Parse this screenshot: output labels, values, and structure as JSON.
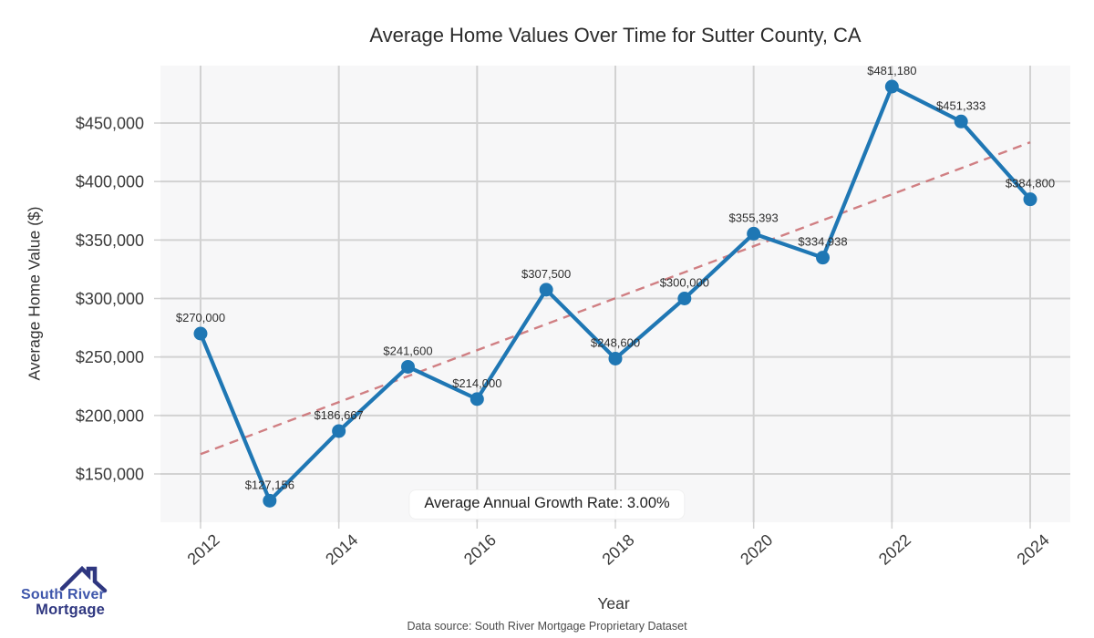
{
  "page": {
    "background": "#ffffff",
    "plot_background": "#f7f7f8",
    "grid_color": "#d2d2d2"
  },
  "chart_data": {
    "type": "line",
    "title": "Average Home Values Over Time for Sutter County, CA",
    "xlabel": "Year",
    "ylabel": "Average Home Value ($)",
    "x": [
      2012,
      2013,
      2014,
      2015,
      2016,
      2017,
      2018,
      2019,
      2020,
      2021,
      2022,
      2023,
      2024
    ],
    "values": [
      270000,
      127156,
      186667,
      241600,
      214000,
      307500,
      248600,
      300000,
      355393,
      334938,
      481180,
      451333,
      384800
    ],
    "point_labels": [
      "$270,000",
      "$127,156",
      "$186,667",
      "$241,600",
      "$214,000",
      "$307,500",
      "$248,600",
      "$300,000",
      "$355,393",
      "$334,938",
      "$481,180",
      "$451,333",
      "$384,800"
    ],
    "x_ticks": [
      2012,
      2014,
      2016,
      2018,
      2020,
      2022,
      2024
    ],
    "y_ticks": [
      150000,
      200000,
      250000,
      300000,
      350000,
      400000,
      450000
    ],
    "y_tick_labels": [
      "$150,000",
      "$200,000",
      "$250,000",
      "$300,000",
      "$350,000",
      "$400,000",
      "$450,000"
    ],
    "x_domain": [
      2011.42,
      2024.58
    ],
    "y_domain": [
      108700,
      499100
    ],
    "grid": true,
    "legend": "none",
    "series_color": "#1f77b4",
    "trend": {
      "style": "dashed",
      "color": "#ca6b6f",
      "x": [
        2012,
        2024
      ],
      "values": [
        166957,
        433531
      ]
    },
    "annotation": "Average Annual Growth Rate: 3.00%"
  },
  "footer": {
    "source": "Data source: South River Mortgage Proprietary Dataset"
  },
  "logo": {
    "line1": "South River",
    "line2": "Mortgage",
    "color1": "#3e56ab",
    "color2": "#2f3780"
  }
}
